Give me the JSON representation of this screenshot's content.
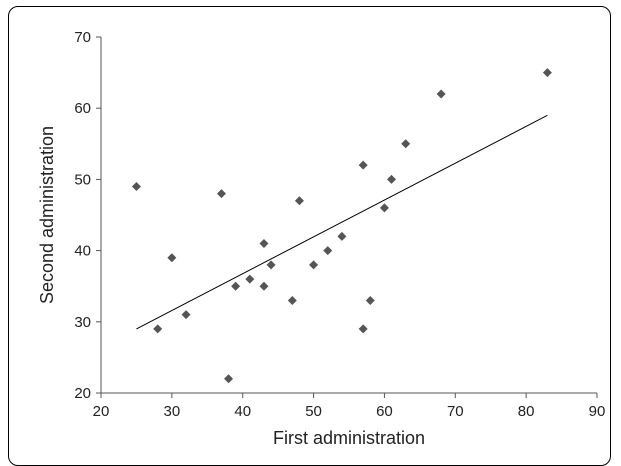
{
  "chart_data": {
    "type": "scatter",
    "title": "",
    "xlabel": "First administration",
    "ylabel": "Second administration",
    "xlim": [
      20,
      90
    ],
    "ylim": [
      20,
      70
    ],
    "xticks": [
      20,
      30,
      40,
      50,
      60,
      70,
      80,
      90
    ],
    "yticks": [
      20,
      30,
      40,
      50,
      60,
      70
    ],
    "grid": false,
    "legend": "none",
    "marker": "diamond",
    "colors": {
      "marker": "#555555",
      "trendline": "#000000",
      "axis": "#555555"
    },
    "series": [
      {
        "points": [
          {
            "x": 25,
            "y": 49
          },
          {
            "x": 28,
            "y": 29
          },
          {
            "x": 30,
            "y": 39
          },
          {
            "x": 32,
            "y": 31
          },
          {
            "x": 37,
            "y": 48
          },
          {
            "x": 38,
            "y": 22
          },
          {
            "x": 39,
            "y": 35
          },
          {
            "x": 41,
            "y": 36
          },
          {
            "x": 43,
            "y": 41
          },
          {
            "x": 43,
            "y": 35
          },
          {
            "x": 44,
            "y": 38
          },
          {
            "x": 47,
            "y": 33
          },
          {
            "x": 48,
            "y": 47
          },
          {
            "x": 50,
            "y": 38
          },
          {
            "x": 52,
            "y": 40
          },
          {
            "x": 54,
            "y": 42
          },
          {
            "x": 57,
            "y": 52
          },
          {
            "x": 57,
            "y": 29
          },
          {
            "x": 58,
            "y": 33
          },
          {
            "x": 60,
            "y": 46
          },
          {
            "x": 61,
            "y": 50
          },
          {
            "x": 63,
            "y": 55
          },
          {
            "x": 68,
            "y": 62
          },
          {
            "x": 83,
            "y": 65
          }
        ]
      }
    ],
    "trendline": {
      "x": [
        25,
        83
      ],
      "y": [
        29,
        59
      ]
    }
  }
}
